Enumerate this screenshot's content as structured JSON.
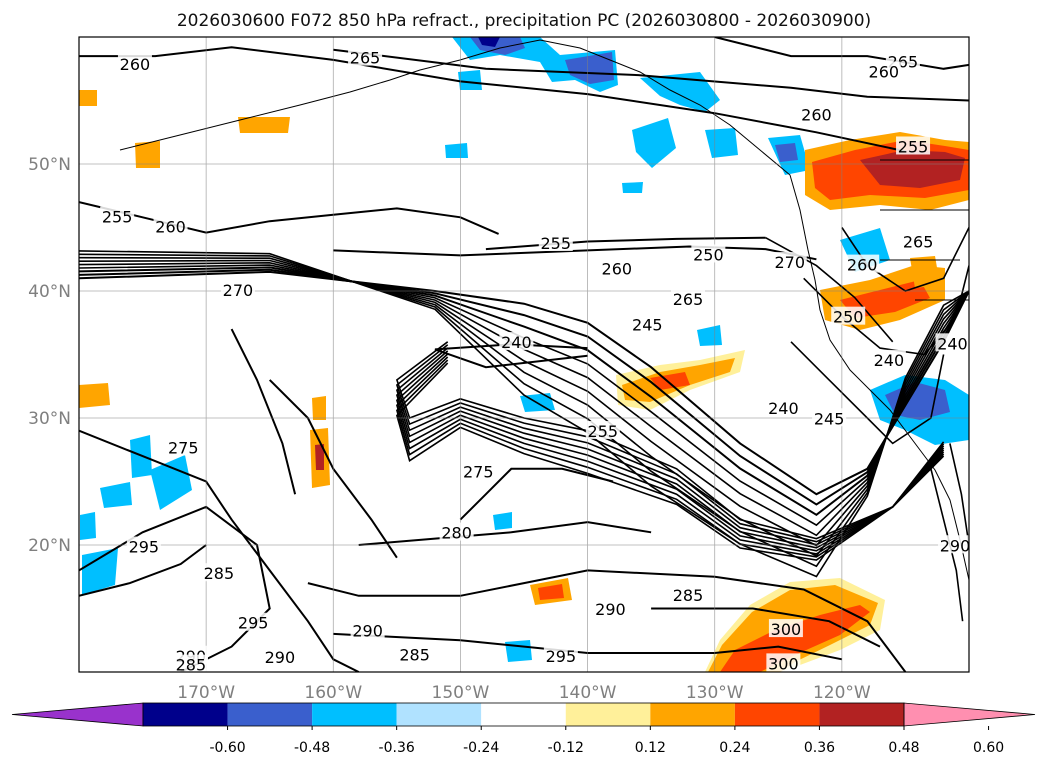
{
  "chart_data": {
    "type": "contour-map",
    "title": "2026030600 F072 850 hPa refract., precipitation PC (2026030800 - 2026030900)",
    "lon_range": [
      -180,
      -110
    ],
    "lat_range": [
      10,
      60
    ],
    "x_ticks": [
      {
        "lon": -170,
        "label": "170°W"
      },
      {
        "lon": -160,
        "label": "160°W"
      },
      {
        "lon": -150,
        "label": "150°W"
      },
      {
        "lon": -140,
        "label": "140°W"
      },
      {
        "lon": -130,
        "label": "130°W"
      },
      {
        "lon": -120,
        "label": "120°W"
      }
    ],
    "y_ticks": [
      {
        "lat": 20,
        "label": "20°N"
      },
      {
        "lat": 30,
        "label": "30°N"
      },
      {
        "lat": 40,
        "label": "40°N"
      },
      {
        "lat": 50,
        "label": "50°N"
      }
    ],
    "grid": true,
    "colorbar": {
      "ticks": [
        "-0.60",
        "-0.48",
        "-0.36",
        "-0.24",
        "-0.12",
        "0.12",
        "0.24",
        "0.36",
        "0.48",
        "0.60"
      ],
      "colors": [
        "#9932cc",
        "#00008b",
        "#3a5fcd",
        "#00bfff",
        "#b0e2ff",
        "#ffffff",
        "#fff09a",
        "#ffa500",
        "#ff4500",
        "#b22222",
        "#ff8fb0"
      ],
      "extend": "both"
    },
    "contour_labels": [
      {
        "text": "260",
        "lon": -175.6,
        "lat": 57.8
      },
      {
        "text": "265",
        "lon": -157.5,
        "lat": 58.3
      },
      {
        "text": "265",
        "lon": -115.2,
        "lat": 58.0
      },
      {
        "text": "260",
        "lon": -116.7,
        "lat": 57.2
      },
      {
        "text": "260",
        "lon": -122.0,
        "lat": 53.8
      },
      {
        "text": "255",
        "lon": -114.4,
        "lat": 51.3
      },
      {
        "text": "255",
        "lon": -177.0,
        "lat": 45.8
      },
      {
        "text": "260",
        "lon": -172.8,
        "lat": 45.0
      },
      {
        "text": "270",
        "lon": -167.5,
        "lat": 40.0
      },
      {
        "text": "255",
        "lon": -142.5,
        "lat": 43.7
      },
      {
        "text": "260",
        "lon": -137.7,
        "lat": 41.7
      },
      {
        "text": "250",
        "lon": -130.5,
        "lat": 42.8
      },
      {
        "text": "265",
        "lon": -132.1,
        "lat": 39.3
      },
      {
        "text": "270",
        "lon": -124.1,
        "lat": 42.2
      },
      {
        "text": "260",
        "lon": -118.4,
        "lat": 42.0
      },
      {
        "text": "265",
        "lon": -114.0,
        "lat": 43.8
      },
      {
        "text": "245",
        "lon": -135.3,
        "lat": 37.3
      },
      {
        "text": "240",
        "lon": -145.6,
        "lat": 35.9
      },
      {
        "text": "250",
        "lon": -119.5,
        "lat": 37.9
      },
      {
        "text": "240",
        "lon": -111.3,
        "lat": 35.8
      },
      {
        "text": "240",
        "lon": -116.3,
        "lat": 34.5
      },
      {
        "text": "240",
        "lon": -124.6,
        "lat": 30.7
      },
      {
        "text": "245",
        "lon": -121.0,
        "lat": 29.9
      },
      {
        "text": "255",
        "lon": -138.8,
        "lat": 28.9
      },
      {
        "text": "275",
        "lon": -171.8,
        "lat": 27.6
      },
      {
        "text": "275",
        "lon": -148.6,
        "lat": 25.7
      },
      {
        "text": "280",
        "lon": -150.3,
        "lat": 20.9
      },
      {
        "text": "295",
        "lon": -174.9,
        "lat": 19.8
      },
      {
        "text": "285",
        "lon": -169.0,
        "lat": 17.7
      },
      {
        "text": "290",
        "lon": -111.1,
        "lat": 19.9
      },
      {
        "text": "295",
        "lon": -166.3,
        "lat": 13.8
      },
      {
        "text": "290",
        "lon": -157.3,
        "lat": 13.2
      },
      {
        "text": "285",
        "lon": -153.6,
        "lat": 11.3
      },
      {
        "text": "290",
        "lon": -164.2,
        "lat": 11.1
      },
      {
        "text": "290",
        "lon": -138.2,
        "lat": 14.9
      },
      {
        "text": "285",
        "lon": -132.1,
        "lat": 16.0
      },
      {
        "text": "295",
        "lon": -142.1,
        "lat": 11.2
      },
      {
        "text": "300",
        "lon": -124.4,
        "lat": 13.3
      },
      {
        "text": "300",
        "lon": -124.6,
        "lat": 10.6
      },
      {
        "text": "290",
        "lon": -171.2,
        "lat": 11.2
      },
      {
        "text": "285",
        "lon": -171.2,
        "lat": 10.5
      }
    ]
  }
}
